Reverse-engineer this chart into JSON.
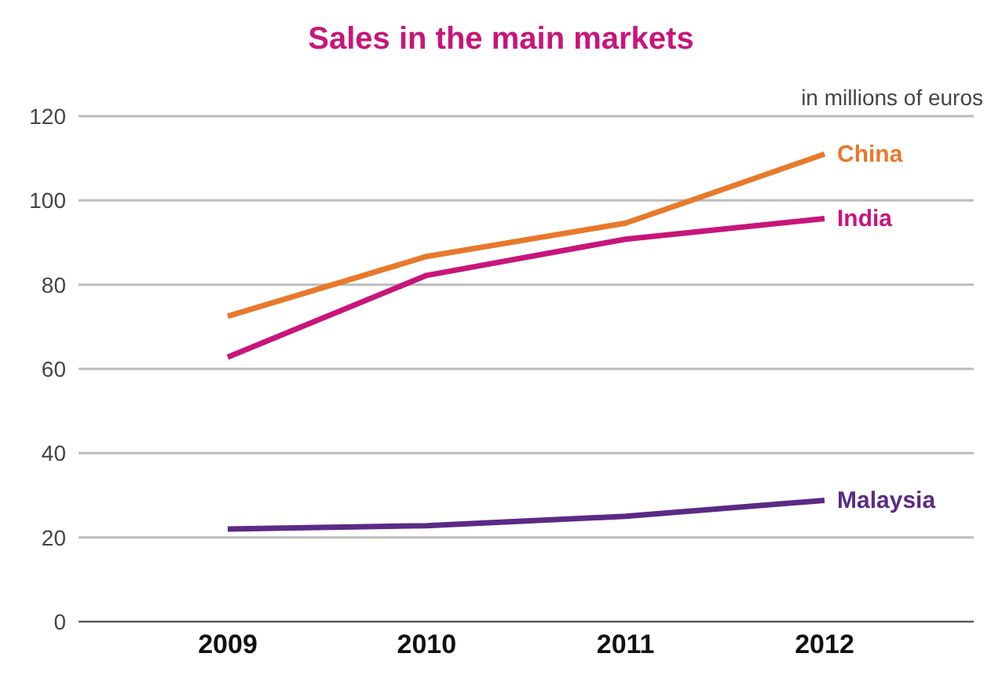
{
  "chart_data": {
    "type": "line",
    "title": "Sales in the main markets",
    "ylabel": "in millions of euros",
    "categories": [
      "2009",
      "2010",
      "2011",
      "2012"
    ],
    "series": [
      {
        "name": "China",
        "color": "#e8792b",
        "values": [
          72.5,
          86.7,
          94.6,
          111
        ]
      },
      {
        "name": "India",
        "color": "#c8157a",
        "values": [
          62.8,
          82.2,
          90.8,
          95.7
        ]
      },
      {
        "name": "Malaysia",
        "color": "#5b2a86",
        "values": [
          22,
          22.8,
          25,
          28.8
        ]
      }
    ],
    "ylim": [
      0,
      120
    ],
    "yticks": [
      0,
      20,
      40,
      60,
      80,
      100,
      120
    ],
    "grid": "y",
    "marker": "none",
    "line_style": "solid"
  }
}
